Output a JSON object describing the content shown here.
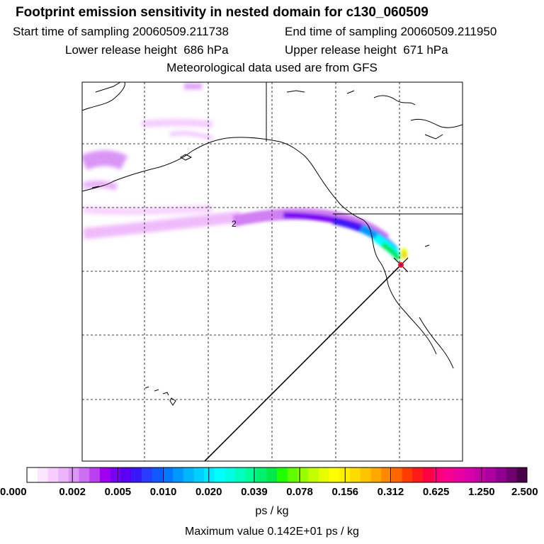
{
  "title": "Footprint emission sensitivity in nested domain for c130_060509",
  "sampling": {
    "start": "Start time of sampling 20060509.211738",
    "end": "End time of sampling 20060509.211950"
  },
  "release": {
    "lower": "Lower release height  686 hPa",
    "upper": "Upper release height  671 hPa"
  },
  "met_source": "Meteorological data used are from GFS",
  "map": {
    "contour_label": "2",
    "marker": "release-point-star-icon"
  },
  "colorbar": {
    "ticks": [
      "0.000",
      "0.002",
      "0.005",
      "0.010",
      "0.020",
      "0.039",
      "0.078",
      "0.156",
      "0.312",
      "0.625",
      "1.250",
      "2.500"
    ],
    "colors": [
      "#ffffff",
      "#fbe6ff",
      "#f6cdff",
      "#eeb4fb",
      "#dc96f5",
      "#cb6ff0",
      "#ba3ff0",
      "#a000f0",
      "#7a00f2",
      "#5a00f5",
      "#3818f8",
      "#2a3cff",
      "#1058ff",
      "#0078ff",
      "#0096ff",
      "#00b4ff",
      "#00cfff",
      "#00e8ff",
      "#00ffff",
      "#00ffe0",
      "#00ffbc",
      "#00ff96",
      "#00f070",
      "#00e84a",
      "#20ff00",
      "#60ff00",
      "#98ff00",
      "#c4ff00",
      "#e6ff00",
      "#ffff00",
      "#fff000",
      "#ffdc00",
      "#ffc400",
      "#ffa800",
      "#ff8800",
      "#ff6600",
      "#ff3c00",
      "#ff1c18",
      "#ff0040",
      "#ff0078",
      "#f70090",
      "#e800a0",
      "#d800a8",
      "#c400a8",
      "#ac00a0",
      "#900090",
      "#700070",
      "#4a0048"
    ],
    "units": "ps / kg"
  },
  "max_value": "Maximum value  0.142E+01 ps / kg"
}
